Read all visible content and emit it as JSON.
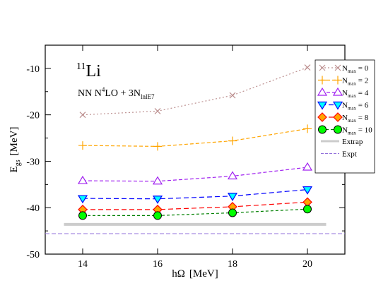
{
  "chart_data": {
    "type": "line",
    "annotation": {
      "nucleus_mass": "11",
      "nucleus_symbol": "Li",
      "interaction": {
        "a": "NN N",
        "a_sup": "4",
        "b": "LO + 3N",
        "b_sub": "lnlE7"
      }
    },
    "xlabel": {
      "main": "hΩ",
      "unit": "[MeV]"
    },
    "ylabel": {
      "main": "E",
      "sub": "gs",
      "unit": "[MeV]"
    },
    "xlim": [
      13,
      21
    ],
    "ylim": [
      -50,
      -5
    ],
    "xticks": [
      14,
      16,
      18,
      20
    ],
    "xtick_labels": [
      "14",
      "16",
      "18",
      "20"
    ],
    "yticks": [
      -50,
      -40,
      -30,
      -20,
      -10
    ],
    "ytick_labels": [
      "-50",
      "-40",
      "-30",
      "-20",
      "-10"
    ],
    "grid": false,
    "legend_position": "top-right",
    "x": [
      14,
      16,
      18,
      20
    ],
    "series": [
      {
        "name": "N",
        "name_sub": "max",
        "name_suffix": " = 0",
        "values": [
          -20.0,
          -19.2,
          -15.8,
          -9.8
        ],
        "color": "#bc8f8f",
        "marker": "x",
        "dash": "2,3"
      },
      {
        "name": "N",
        "name_sub": "max",
        "name_suffix": " = 2",
        "values": [
          -26.6,
          -26.8,
          -25.6,
          -23.0
        ],
        "color": "#ffa500",
        "marker": "plus",
        "dash": "5,3"
      },
      {
        "name": "N",
        "name_sub": "max",
        "name_suffix": " = 4",
        "values": [
          -34.2,
          -34.3,
          -33.2,
          -31.3
        ],
        "color": "#a020f0",
        "marker": "triangle-up",
        "dash": "5,3"
      },
      {
        "name": "N",
        "name_sub": "max",
        "name_suffix": " = 6",
        "values": [
          -38.0,
          -38.1,
          -37.5,
          -36.1
        ],
        "color": "#0000ff",
        "marker": "triangle-down",
        "dash": "7,4"
      },
      {
        "name": "N",
        "name_sub": "max",
        "name_suffix": " = 8",
        "values": [
          -40.4,
          -40.4,
          -39.8,
          -38.8
        ],
        "color": "#ff0000",
        "marker": "diamond",
        "dash": "7,4"
      },
      {
        "name": "N",
        "name_sub": "max",
        "name_suffix": " = 10",
        "values": [
          -41.7,
          -41.7,
          -41.1,
          -40.3
        ],
        "color": "#008000",
        "marker": "circle",
        "dash": "4,3"
      }
    ],
    "reference_lines": [
      {
        "name": "Extrap",
        "y": -43.6,
        "x_range": [
          13.5,
          20.5
        ],
        "color": "#cccccc"
      },
      {
        "name": "Expt",
        "y": -45.6,
        "color": "#9370db"
      }
    ]
  }
}
